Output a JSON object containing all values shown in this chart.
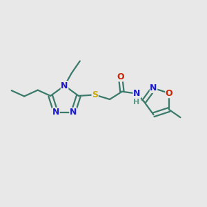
{
  "bg_color": "#e8e8e8",
  "atom_colors": {
    "C": "#3a7a6a",
    "N": "#1a1acc",
    "O": "#cc2200",
    "S": "#ccaa00",
    "H": "#5a9a8a"
  },
  "bond_color": "#3a7a6a",
  "bond_width": 1.6,
  "font_size": 9
}
